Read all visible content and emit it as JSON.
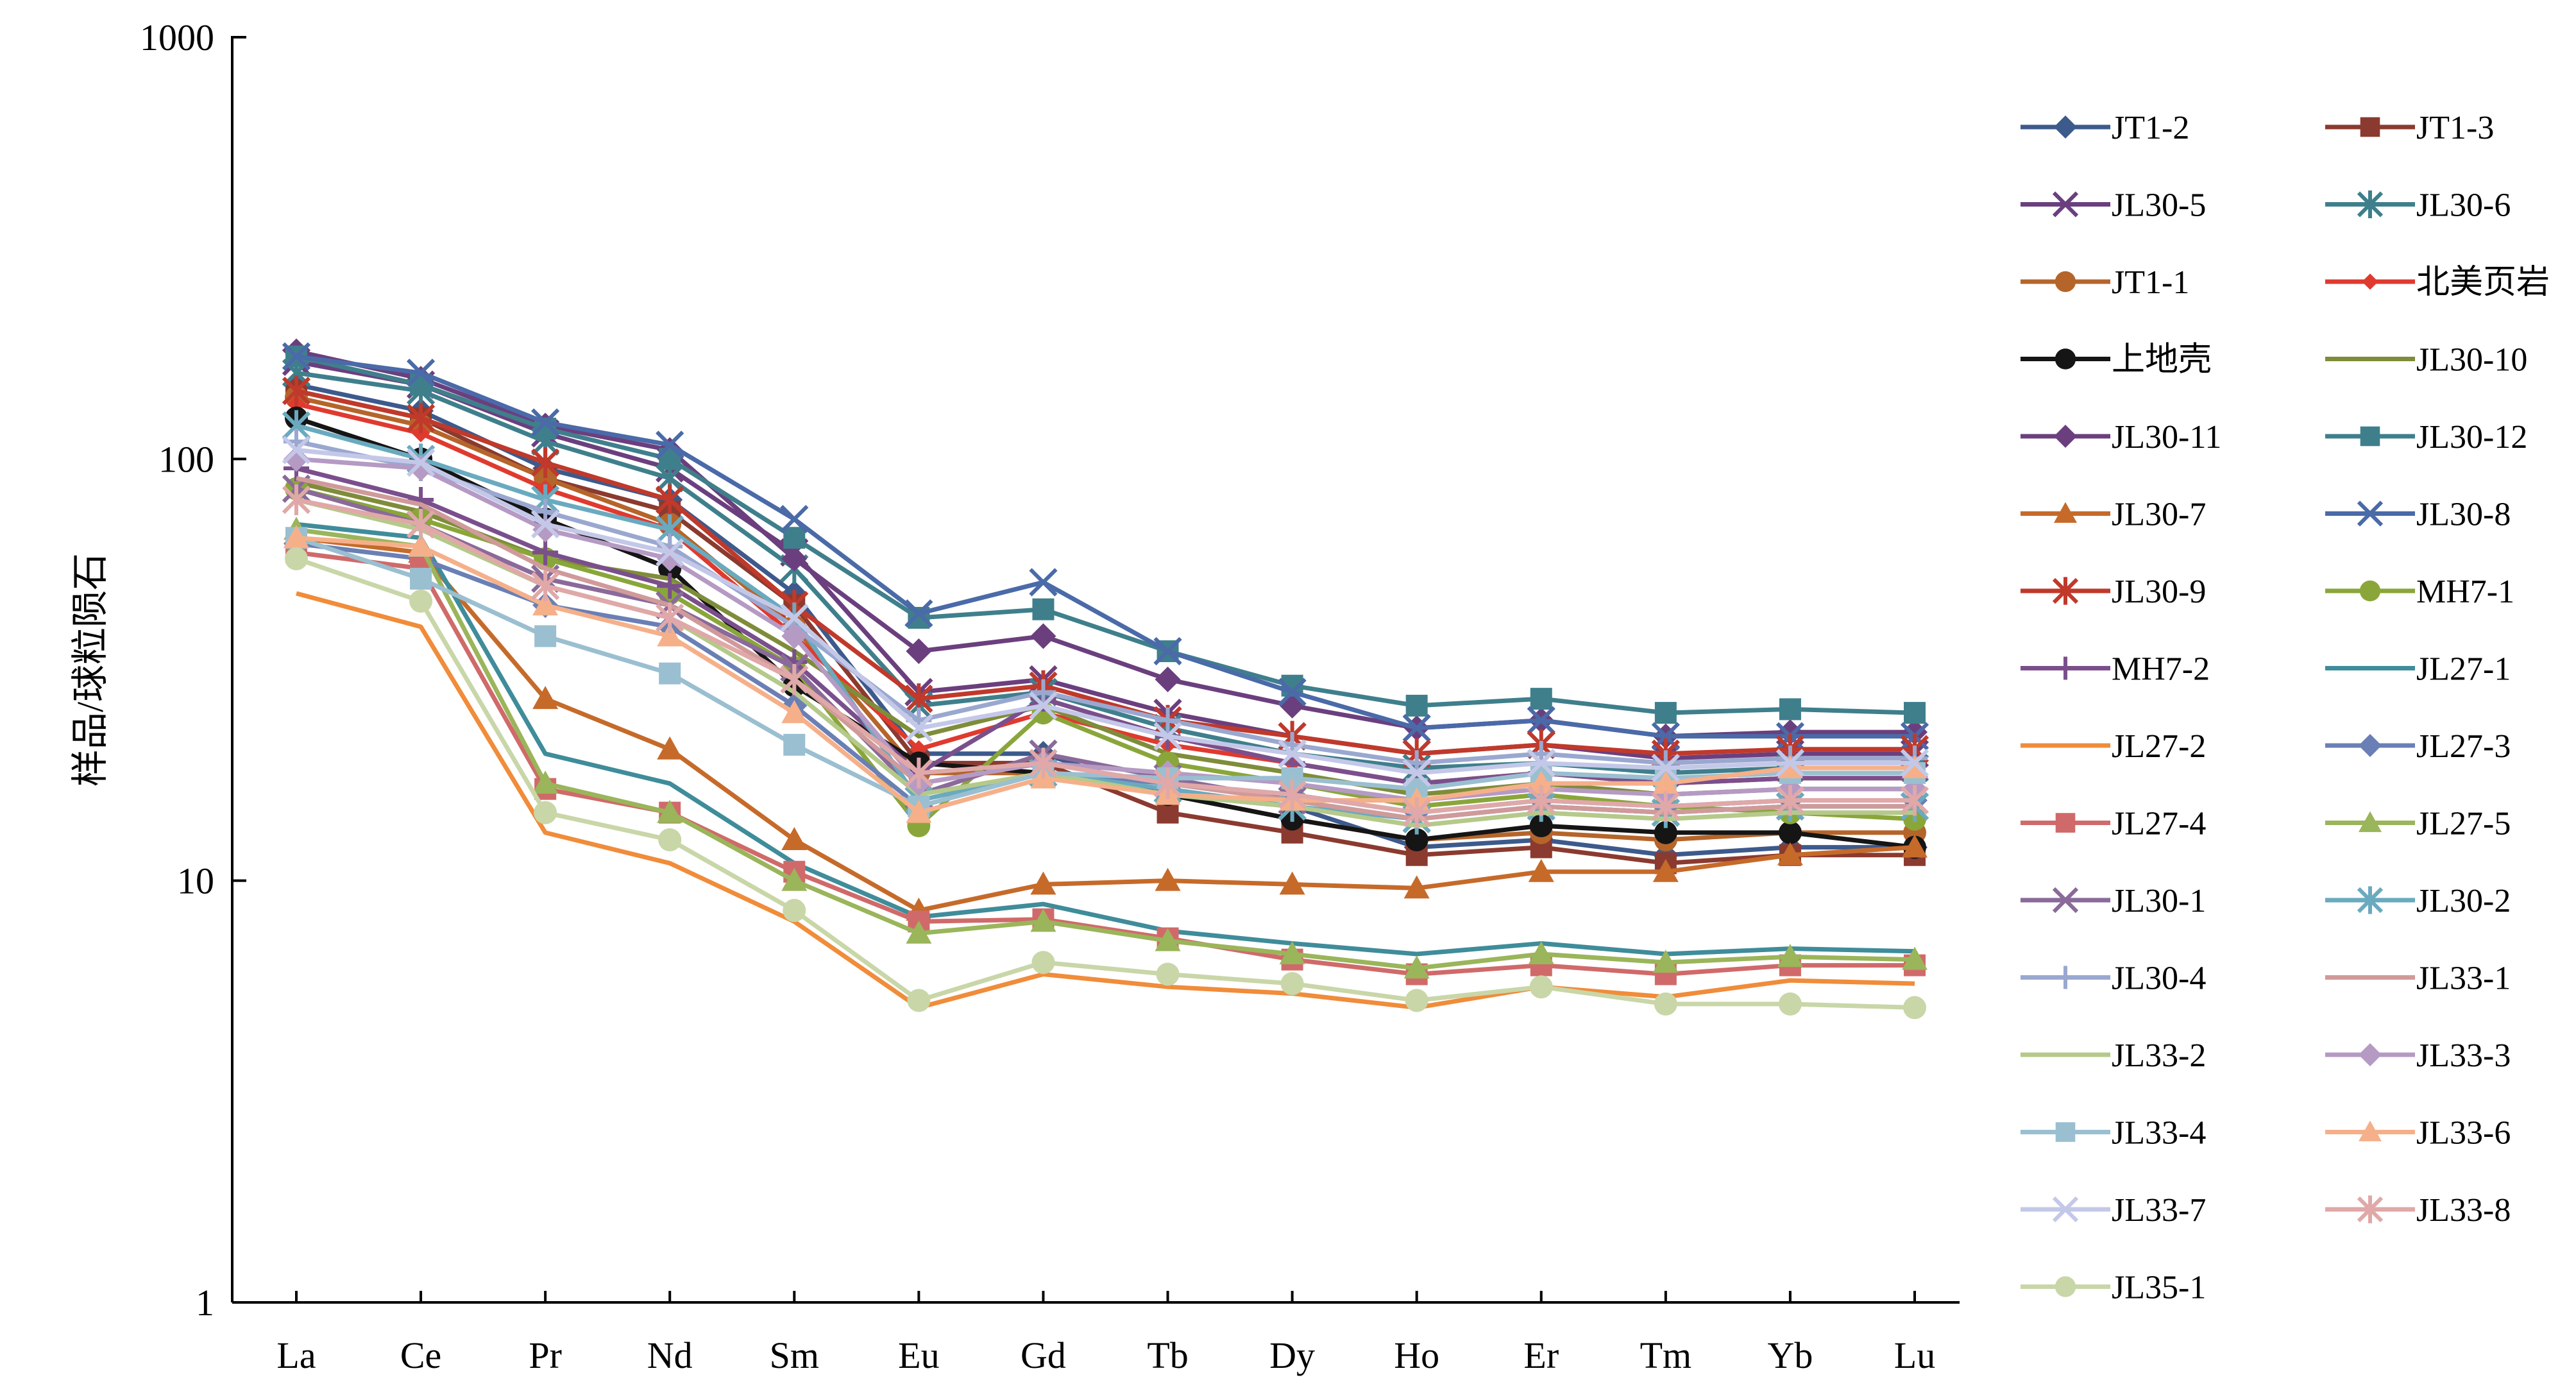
{
  "chart_data": {
    "type": "line",
    "title": "",
    "xlabel": "",
    "ylabel": "样品/球粒陨石",
    "yscale": "log",
    "ylim": [
      1,
      1000
    ],
    "yticks": [
      "1",
      "10",
      "100",
      "1000"
    ],
    "grid": false,
    "legend_position": "right",
    "categories": [
      "La",
      "Ce",
      "Pr",
      "Nd",
      "Sm",
      "Eu",
      "Gd",
      "Tb",
      "Dy",
      "Ho",
      "Er",
      "Tm",
      "Yb",
      "Lu"
    ],
    "series": [
      {
        "name": "JT1-2",
        "color": "#3d5a8c",
        "marker": "diamond",
        "values": [
          150,
          130,
          95,
          80,
          48,
          20,
          20,
          16,
          15,
          12,
          12.5,
          11.5,
          12,
          12
        ]
      },
      {
        "name": "JT1-3",
        "color": "#8b3a2f",
        "marker": "square",
        "values": [
          145,
          125,
          90,
          75,
          45,
          19,
          19,
          14.5,
          13,
          11.5,
          12,
          11,
          11.5,
          11.5
        ]
      },
      {
        "name": "JL30-5",
        "color": "#6b3f7e",
        "marker": "x",
        "values": [
          170,
          150,
          115,
          95,
          60,
          28,
          30,
          25,
          22,
          20,
          21,
          19.5,
          20,
          20
        ]
      },
      {
        "name": "JL30-6",
        "color": "#3f7f8c",
        "marker": "asterisk",
        "values": [
          160,
          145,
          110,
          90,
          55,
          26,
          28,
          23,
          20,
          18.5,
          19,
          18,
          18.5,
          18.5
        ]
      },
      {
        "name": "JT1-1",
        "color": "#b5652a",
        "marker": "circle",
        "values": [
          140,
          120,
          90,
          70,
          40,
          18,
          18,
          16,
          14,
          12.5,
          13,
          12.5,
          13,
          13
        ]
      },
      {
        "name": "北美页岩",
        "color": "#e03a2f",
        "marker": "smalldiamond",
        "values": [
          135,
          115,
          85,
          68,
          38,
          20.5,
          25,
          21,
          19,
          17,
          18,
          17,
          17.5,
          17.5
        ]
      },
      {
        "name": "上地壳",
        "color": "#151515",
        "marker": "circle",
        "values": [
          125,
          100,
          72,
          55,
          29,
          19,
          18,
          16,
          14,
          12.5,
          13.5,
          13,
          13,
          12
        ]
      },
      {
        "name": "JL30-10",
        "color": "#7f8c3a",
        "marker": "none",
        "values": [
          88,
          75,
          58,
          52,
          35,
          22,
          26,
          20,
          18,
          16,
          17,
          16,
          16.5,
          16.5
        ]
      },
      {
        "name": "JL30-11",
        "color": "#6b3f7e",
        "marker": "diamond",
        "values": [
          180,
          155,
          120,
          105,
          58,
          35,
          38,
          30,
          26,
          23,
          24,
          22,
          22.5,
          22.5
        ]
      },
      {
        "name": "JL30-12",
        "color": "#3f7f8c",
        "marker": "square",
        "values": [
          175,
          150,
          118,
          100,
          65,
          42,
          44,
          35,
          29,
          26,
          27,
          25,
          25.5,
          25
        ]
      },
      {
        "name": "JL30-7",
        "color": "#c66a2a",
        "marker": "triangle",
        "values": [
          65,
          60,
          27,
          20.5,
          12.5,
          8.5,
          9.8,
          10,
          9.8,
          9.6,
          10.5,
          10.5,
          11.5,
          12
        ]
      },
      {
        "name": "JL30-8",
        "color": "#4a6aa8",
        "marker": "x",
        "values": [
          175,
          160,
          122,
          108,
          72,
          43,
          51,
          35,
          28,
          23,
          24,
          22,
          22,
          22
        ]
      },
      {
        "name": "JL30-9",
        "color": "#c0392b",
        "marker": "asterisk",
        "values": [
          145,
          125,
          98,
          80,
          45,
          27,
          29,
          24,
          22,
          20,
          21,
          20,
          20.5,
          20.5
        ]
      },
      {
        "name": "MH7-1",
        "color": "#8aa63a",
        "marker": "circle",
        "values": [
          85,
          72,
          58,
          48,
          32,
          13.5,
          25,
          19,
          17,
          15,
          16,
          15,
          14.5,
          14
        ]
      },
      {
        "name": "MH7-2",
        "color": "#7a4f8c",
        "marker": "plus",
        "values": [
          95,
          80,
          60,
          50,
          33,
          18,
          27,
          22,
          19,
          17,
          18,
          17,
          17.5,
          17.5
        ]
      },
      {
        "name": "JL27-1",
        "color": "#3f8c9a",
        "marker": "none",
        "values": [
          70,
          65,
          20,
          17,
          11,
          8.2,
          8.8,
          7.6,
          7.1,
          6.7,
          7.1,
          6.7,
          6.9,
          6.8
        ]
      },
      {
        "name": "JL27-2",
        "color": "#f08c3a",
        "marker": "none",
        "values": [
          48,
          40,
          13,
          11,
          8,
          5,
          6,
          5.6,
          5.4,
          5,
          5.6,
          5.3,
          5.8,
          5.7
        ]
      },
      {
        "name": "JL27-3",
        "color": "#6a7fb5",
        "marker": "diamond",
        "values": [
          63,
          58,
          45,
          40,
          26,
          15,
          18,
          17,
          16,
          14.5,
          15.5,
          15,
          15.5,
          15.5
        ]
      },
      {
        "name": "JL27-4",
        "color": "#d06a6a",
        "marker": "square",
        "values": [
          60,
          55,
          16.5,
          14.5,
          10.5,
          8,
          8.1,
          7.3,
          6.5,
          6,
          6.3,
          6,
          6.3,
          6.3
        ]
      },
      {
        "name": "JL27-5",
        "color": "#9ab55a",
        "marker": "triangle",
        "values": [
          68,
          62,
          17,
          14.5,
          10,
          7.5,
          8,
          7.2,
          6.7,
          6.2,
          6.7,
          6.4,
          6.6,
          6.5
        ]
      },
      {
        "name": "JL30-1",
        "color": "#8a6a9a",
        "marker": "x",
        "values": [
          85,
          70,
          52,
          45,
          32,
          16,
          20,
          17.5,
          15.5,
          14,
          15,
          14.5,
          15,
          15
        ]
      },
      {
        "name": "JL30-2",
        "color": "#6aaabf",
        "marker": "asterisk",
        "values": [
          120,
          100,
          80,
          68,
          42,
          15.5,
          18,
          16.5,
          15,
          14,
          15,
          14.5,
          15,
          15
        ]
      },
      {
        "name": "JL30-4",
        "color": "#9aa8d0",
        "marker": "plus",
        "values": [
          110,
          95,
          75,
          62,
          40,
          24,
          28,
          24,
          21,
          19,
          20,
          19,
          19.5,
          19.5
        ]
      },
      {
        "name": "JL33-1",
        "color": "#d09a9a",
        "marker": "none",
        "values": [
          90,
          78,
          55,
          45,
          30,
          17,
          19,
          17,
          15.5,
          14,
          15,
          14.5,
          15,
          15
        ]
      },
      {
        "name": "JL33-2",
        "color": "#b5c98a",
        "marker": "none",
        "values": [
          80,
          68,
          50,
          42,
          28,
          16,
          18,
          16,
          15,
          13.5,
          14.5,
          14,
          14.5,
          14.5
        ]
      },
      {
        "name": "JL33-3",
        "color": "#b59ac4",
        "marker": "diamond",
        "values": [
          100,
          95,
          68,
          58,
          38,
          17,
          19,
          18,
          17,
          15.5,
          16.5,
          16,
          16.5,
          16.5
        ]
      },
      {
        "name": "JL33-4",
        "color": "#9abfd0",
        "marker": "square",
        "values": [
          65,
          52,
          38,
          31,
          21,
          15,
          18,
          17.5,
          17.5,
          16.5,
          18,
          17.5,
          18,
          18
        ]
      },
      {
        "name": "JL33-6",
        "color": "#f5b08a",
        "marker": "triangle",
        "values": [
          65,
          62,
          45,
          38,
          25,
          14.5,
          17.5,
          16,
          15.5,
          15.5,
          17,
          17,
          18.5,
          18.5
        ]
      },
      {
        "name": "JL33-7",
        "color": "#c4c8e8",
        "marker": "x",
        "values": [
          105,
          98,
          70,
          60,
          42,
          23,
          26,
          22,
          20,
          18,
          19,
          18.5,
          19,
          19
        ]
      },
      {
        "name": "JL33-8",
        "color": "#e0a8a8",
        "marker": "asterisk",
        "values": [
          80,
          70,
          50,
          42,
          30,
          18,
          19,
          17,
          16,
          14.5,
          15.5,
          15,
          15.5,
          15.5
        ]
      },
      {
        "name": "JL35-1",
        "color": "#c9d6a8",
        "marker": "circle",
        "values": [
          58,
          46,
          14.5,
          12.5,
          8.5,
          5.2,
          6.4,
          6,
          5.7,
          5.2,
          5.6,
          5.1,
          5.1,
          5
        ]
      }
    ]
  }
}
